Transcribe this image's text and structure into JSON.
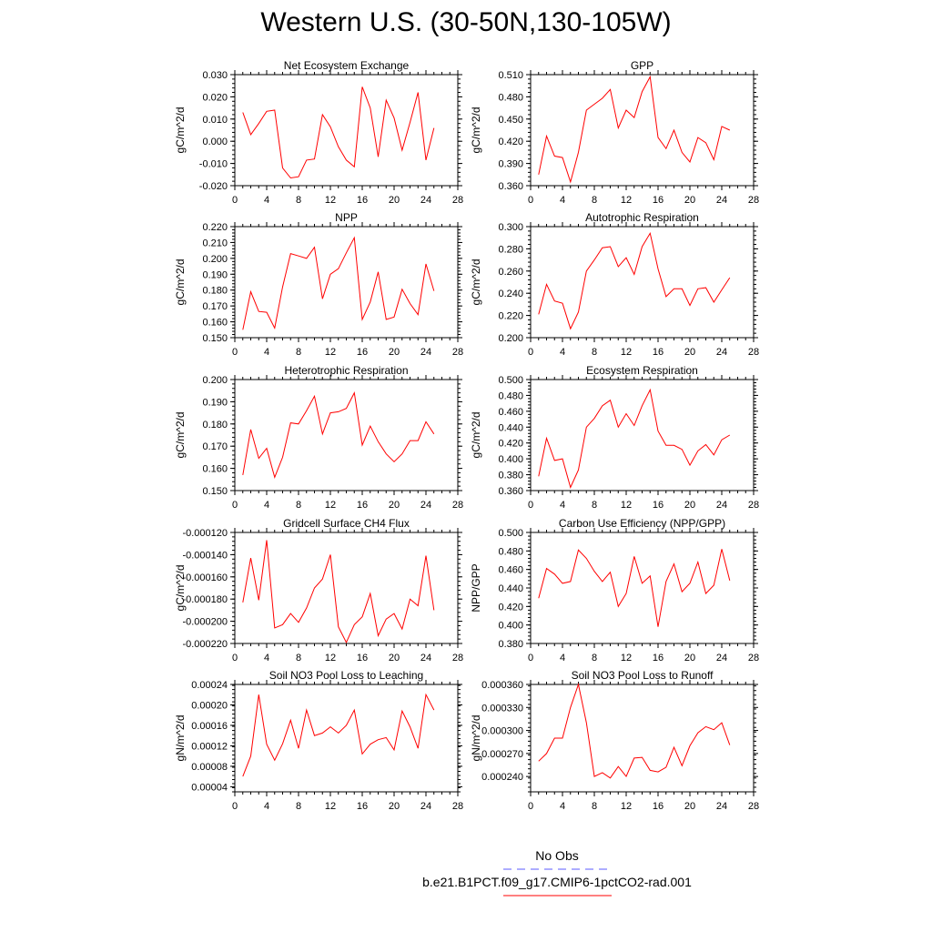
{
  "title": "Western U.S. (30-50N,130-105W)",
  "colors": {
    "model": "#ff0000",
    "obs": "#5b5bff",
    "axis": "#000000"
  },
  "legend": {
    "obs_label": "No Obs",
    "model_label": "b.e21.B1PCT.f09_g17.CMIP6-1pctCO2-rad.001"
  },
  "chart_data": [
    {
      "type": "line",
      "title": "Net Ecosystem Exchange",
      "ylabel": "gC/m^2/d",
      "xlim": [
        0,
        28
      ],
      "xticks": [
        "0",
        "4",
        "8",
        "12",
        "16",
        "20",
        "24",
        "28"
      ],
      "ylim": [
        -0.02,
        0.03
      ],
      "yticks": [
        "-0.020",
        "-0.010",
        "0.000",
        "0.010",
        "0.020",
        "0.030"
      ],
      "x": [
        1,
        2,
        3,
        4,
        5,
        6,
        7,
        8,
        9,
        10,
        11,
        12,
        13,
        14,
        15,
        16,
        17,
        18,
        19,
        20,
        21,
        22,
        23,
        24,
        25
      ],
      "values": [
        0.013,
        0.003,
        0.008,
        0.0135,
        0.014,
        -0.012,
        -0.0165,
        -0.016,
        -0.0085,
        -0.008,
        0.012,
        0.0065,
        -0.0025,
        -0.0085,
        -0.0115,
        0.0245,
        0.015,
        -0.007,
        0.0185,
        0.0105,
        -0.004,
        0.0085,
        0.022,
        -0.0085,
        0.006
      ]
    },
    {
      "type": "line",
      "title": "GPP",
      "ylabel": "gC/m^2/d",
      "xlim": [
        0,
        28
      ],
      "xticks": [
        "0",
        "4",
        "8",
        "12",
        "16",
        "20",
        "24",
        "28"
      ],
      "ylim": [
        0.36,
        0.51
      ],
      "yticks": [
        "0.360",
        "0.390",
        "0.420",
        "0.450",
        "0.480",
        "0.510"
      ],
      "x": [
        1,
        2,
        3,
        4,
        5,
        6,
        7,
        8,
        9,
        10,
        11,
        12,
        13,
        14,
        15,
        16,
        17,
        18,
        19,
        20,
        21,
        22,
        23,
        24,
        25
      ],
      "values": [
        0.375,
        0.427,
        0.4,
        0.398,
        0.365,
        0.405,
        0.462,
        0.47,
        0.478,
        0.49,
        0.438,
        0.462,
        0.452,
        0.487,
        0.507,
        0.425,
        0.41,
        0.435,
        0.405,
        0.392,
        0.425,
        0.418,
        0.395,
        0.44,
        0.435
      ]
    },
    {
      "type": "line",
      "title": "NPP",
      "ylabel": "gC/m^2/d",
      "xlim": [
        0,
        28
      ],
      "xticks": [
        "0",
        "4",
        "8",
        "12",
        "16",
        "20",
        "24",
        "28"
      ],
      "ylim": [
        0.15,
        0.22
      ],
      "yticks": [
        "0.150",
        "0.160",
        "0.170",
        "0.180",
        "0.190",
        "0.200",
        "0.210",
        "0.220"
      ],
      "x": [
        1,
        2,
        3,
        4,
        5,
        6,
        7,
        8,
        9,
        10,
        11,
        12,
        13,
        14,
        15,
        16,
        17,
        18,
        19,
        20,
        21,
        22,
        23,
        24,
        25
      ],
      "values": [
        0.155,
        0.179,
        0.1665,
        0.166,
        0.156,
        0.182,
        0.203,
        0.2015,
        0.2,
        0.207,
        0.1745,
        0.19,
        0.1935,
        0.2035,
        0.213,
        0.1615,
        0.1725,
        0.1915,
        0.1615,
        0.163,
        0.1805,
        0.1715,
        0.1645,
        0.1965,
        0.1795
      ]
    },
    {
      "type": "line",
      "title": "Autotrophic Respiration",
      "ylabel": "gC/m^2/d",
      "xlim": [
        0,
        28
      ],
      "xticks": [
        "0",
        "4",
        "8",
        "12",
        "16",
        "20",
        "24",
        "28"
      ],
      "ylim": [
        0.2,
        0.3
      ],
      "yticks": [
        "0.200",
        "0.220",
        "0.240",
        "0.260",
        "0.280",
        "0.300"
      ],
      "x": [
        1,
        2,
        3,
        4,
        5,
        6,
        7,
        8,
        9,
        10,
        11,
        12,
        13,
        14,
        15,
        16,
        17,
        18,
        19,
        20,
        21,
        22,
        23,
        24,
        25
      ],
      "values": [
        0.221,
        0.248,
        0.233,
        0.231,
        0.208,
        0.223,
        0.26,
        0.27,
        0.281,
        0.282,
        0.264,
        0.272,
        0.257,
        0.282,
        0.294,
        0.262,
        0.237,
        0.244,
        0.244,
        0.229,
        0.244,
        0.245,
        0.232,
        0.243,
        0.254
      ]
    },
    {
      "type": "line",
      "title": "Heterotrophic Respiration",
      "ylabel": "gC/m^2/d",
      "xlim": [
        0,
        28
      ],
      "xticks": [
        "0",
        "4",
        "8",
        "12",
        "16",
        "20",
        "24",
        "28"
      ],
      "ylim": [
        0.15,
        0.2
      ],
      "yticks": [
        "0.150",
        "0.160",
        "0.170",
        "0.180",
        "0.190",
        "0.200"
      ],
      "x": [
        1,
        2,
        3,
        4,
        5,
        6,
        7,
        8,
        9,
        10,
        11,
        12,
        13,
        14,
        15,
        16,
        17,
        18,
        19,
        20,
        21,
        22,
        23,
        24,
        25
      ],
      "values": [
        0.157,
        0.1775,
        0.1645,
        0.169,
        0.156,
        0.165,
        0.1805,
        0.18,
        0.186,
        0.1925,
        0.1755,
        0.185,
        0.1855,
        0.187,
        0.194,
        0.1705,
        0.179,
        0.172,
        0.1665,
        0.163,
        0.1665,
        0.1725,
        0.1725,
        0.181,
        0.1755
      ]
    },
    {
      "type": "line",
      "title": "Ecosystem Respiration",
      "ylabel": "gC/m^2/d",
      "xlim": [
        0,
        28
      ],
      "xticks": [
        "0",
        "4",
        "8",
        "12",
        "16",
        "20",
        "24",
        "28"
      ],
      "ylim": [
        0.36,
        0.5
      ],
      "yticks": [
        "0.360",
        "0.380",
        "0.400",
        "0.420",
        "0.440",
        "0.460",
        "0.480",
        "0.500"
      ],
      "x": [
        1,
        2,
        3,
        4,
        5,
        6,
        7,
        8,
        9,
        10,
        11,
        12,
        13,
        14,
        15,
        16,
        17,
        18,
        19,
        20,
        21,
        22,
        23,
        24,
        25
      ],
      "values": [
        0.378,
        0.426,
        0.398,
        0.4,
        0.364,
        0.386,
        0.44,
        0.451,
        0.467,
        0.474,
        0.44,
        0.457,
        0.442,
        0.467,
        0.487,
        0.435,
        0.417,
        0.417,
        0.412,
        0.392,
        0.41,
        0.418,
        0.405,
        0.424,
        0.43
      ]
    },
    {
      "type": "line",
      "title": "Gridcell Surface CH4 Flux",
      "ylabel": "gC/m^2/d",
      "xlim": [
        0,
        28
      ],
      "xticks": [
        "0",
        "4",
        "8",
        "12",
        "16",
        "20",
        "24",
        "28"
      ],
      "ylim": [
        -0.00022,
        -0.00012
      ],
      "yticks": [
        "-0.000220",
        "-0.000200",
        "-0.000180",
        "-0.000160",
        "-0.000140",
        "-0.000120"
      ],
      "x": [
        1,
        2,
        3,
        4,
        5,
        6,
        7,
        8,
        9,
        10,
        11,
        12,
        13,
        14,
        15,
        16,
        17,
        18,
        19,
        20,
        21,
        22,
        23,
        24,
        25
      ],
      "values": [
        -0.000183,
        -0.000143,
        -0.000181,
        -0.000127,
        -0.000206,
        -0.000203,
        -0.000193,
        -0.000201,
        -0.000188,
        -0.00017,
        -0.000162,
        -0.00014,
        -0.000205,
        -0.000219,
        -0.000203,
        -0.000196,
        -0.000175,
        -0.000213,
        -0.000198,
        -0.000193,
        -0.000207,
        -0.00018,
        -0.000186,
        -0.000141,
        -0.00019
      ]
    },
    {
      "type": "line",
      "title": "Carbon Use Efficiency (NPP/GPP)",
      "ylabel": "NPP/GPP",
      "xlim": [
        0,
        28
      ],
      "xticks": [
        "0",
        "4",
        "8",
        "12",
        "16",
        "20",
        "24",
        "28"
      ],
      "ylim": [
        0.38,
        0.5
      ],
      "yticks": [
        "0.380",
        "0.400",
        "0.420",
        "0.440",
        "0.460",
        "0.480",
        "0.500"
      ],
      "x": [
        1,
        2,
        3,
        4,
        5,
        6,
        7,
        8,
        9,
        10,
        11,
        12,
        13,
        14,
        15,
        16,
        17,
        18,
        19,
        20,
        21,
        22,
        23,
        24,
        25
      ],
      "values": [
        0.429,
        0.461,
        0.455,
        0.445,
        0.447,
        0.481,
        0.472,
        0.458,
        0.447,
        0.457,
        0.42,
        0.434,
        0.474,
        0.445,
        0.453,
        0.398,
        0.447,
        0.466,
        0.436,
        0.445,
        0.468,
        0.434,
        0.443,
        0.482,
        0.448
      ]
    },
    {
      "type": "line",
      "title": "Soil NO3 Pool Loss to Leaching",
      "ylabel": "gN/m^2/d",
      "xlim": [
        0,
        28
      ],
      "xticks": [
        "0",
        "4",
        "8",
        "12",
        "16",
        "20",
        "24",
        "28"
      ],
      "ylim": [
        3e-05,
        0.00024
      ],
      "yticks": [
        "0.00004",
        "0.00008",
        "0.00012",
        "0.00016",
        "0.00020",
        "0.00024"
      ],
      "x": [
        1,
        2,
        3,
        4,
        5,
        6,
        7,
        8,
        9,
        10,
        11,
        12,
        13,
        14,
        15,
        16,
        17,
        18,
        19,
        20,
        21,
        22,
        23,
        24,
        25
      ],
      "values": [
        6e-05,
        0.0001,
        0.00022,
        0.000123,
        9.2e-05,
        0.000124,
        0.00017,
        0.000115,
        0.00019,
        0.00014,
        0.000145,
        0.000157,
        0.000145,
        0.00016,
        0.00019,
        0.000104,
        0.000123,
        0.000132,
        0.000136,
        0.000112,
        0.000188,
        0.000157,
        0.000115,
        0.00022,
        0.00019
      ]
    },
    {
      "type": "line",
      "title": "Soil NO3 Pool Loss to Runoff",
      "ylabel": "gN/m^2/d",
      "xlim": [
        0,
        28
      ],
      "xticks": [
        "0",
        "4",
        "8",
        "12",
        "16",
        "20",
        "24",
        "28"
      ],
      "ylim": [
        0.00022,
        0.00036
      ],
      "yticks": [
        "0.000240",
        "0.000270",
        "0.000300",
        "0.000330",
        "0.000360"
      ],
      "x": [
        1,
        2,
        3,
        4,
        5,
        6,
        7,
        8,
        9,
        10,
        11,
        12,
        13,
        14,
        15,
        16,
        17,
        18,
        19,
        20,
        21,
        22,
        23,
        24,
        25
      ],
      "values": [
        0.00026,
        0.00027,
        0.00029,
        0.00029,
        0.00033,
        0.00036,
        0.00031,
        0.00024,
        0.000245,
        0.000238,
        0.000253,
        0.00024,
        0.000264,
        0.000265,
        0.000248,
        0.000246,
        0.000252,
        0.000278,
        0.000254,
        0.00028,
        0.000297,
        0.000305,
        0.000301,
        0.00031,
        0.000281
      ]
    }
  ]
}
